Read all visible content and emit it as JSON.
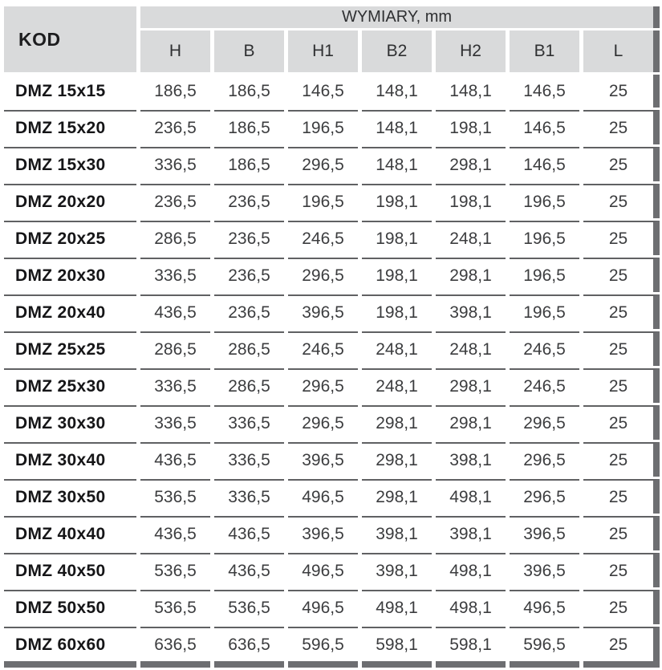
{
  "table": {
    "header": {
      "kod_label": "KOD",
      "group_label": "WYMIARY, mm",
      "columns": [
        "H",
        "B",
        "H1",
        "B2",
        "H2",
        "B1",
        "L"
      ]
    },
    "rows": [
      {
        "kod": "DMZ 15x15",
        "values": [
          "186,5",
          "186,5",
          "146,5",
          "148,1",
          "148,1",
          "146,5",
          "25"
        ]
      },
      {
        "kod": "DMZ 15x20",
        "values": [
          "236,5",
          "186,5",
          "196,5",
          "148,1",
          "198,1",
          "146,5",
          "25"
        ]
      },
      {
        "kod": "DMZ 15x30",
        "values": [
          "336,5",
          "186,5",
          "296,5",
          "148,1",
          "298,1",
          "146,5",
          "25"
        ]
      },
      {
        "kod": "DMZ 20x20",
        "values": [
          "236,5",
          "236,5",
          "196,5",
          "198,1",
          "198,1",
          "196,5",
          "25"
        ]
      },
      {
        "kod": "DMZ 20x25",
        "values": [
          "286,5",
          "236,5",
          "246,5",
          "198,1",
          "248,1",
          "196,5",
          "25"
        ]
      },
      {
        "kod": "DMZ 20x30",
        "values": [
          "336,5",
          "236,5",
          "296,5",
          "198,1",
          "298,1",
          "196,5",
          "25"
        ]
      },
      {
        "kod": "DMZ 20x40",
        "values": [
          "436,5",
          "236,5",
          "396,5",
          "198,1",
          "398,1",
          "196,5",
          "25"
        ]
      },
      {
        "kod": "DMZ 25x25",
        "values": [
          "286,5",
          "286,5",
          "246,5",
          "248,1",
          "248,1",
          "246,5",
          "25"
        ]
      },
      {
        "kod": "DMZ 25x30",
        "values": [
          "336,5",
          "286,5",
          "296,5",
          "248,1",
          "298,1",
          "246,5",
          "25"
        ]
      },
      {
        "kod": "DMZ 30x30",
        "values": [
          "336,5",
          "336,5",
          "296,5",
          "298,1",
          "298,1",
          "296,5",
          "25"
        ]
      },
      {
        "kod": "DMZ 30x40",
        "values": [
          "436,5",
          "336,5",
          "396,5",
          "298,1",
          "398,1",
          "296,5",
          "25"
        ]
      },
      {
        "kod": "DMZ 30x50",
        "values": [
          "536,5",
          "336,5",
          "496,5",
          "298,1",
          "498,1",
          "296,5",
          "25"
        ]
      },
      {
        "kod": "DMZ 40x40",
        "values": [
          "436,5",
          "436,5",
          "396,5",
          "398,1",
          "398,1",
          "396,5",
          "25"
        ]
      },
      {
        "kod": "DMZ 40x50",
        "values": [
          "536,5",
          "436,5",
          "496,5",
          "398,1",
          "498,1",
          "396,5",
          "25"
        ]
      },
      {
        "kod": "DMZ 50x50",
        "values": [
          "536,5",
          "536,5",
          "496,5",
          "498,1",
          "498,1",
          "496,5",
          "25"
        ]
      },
      {
        "kod": "DMZ 60x60",
        "values": [
          "636,5",
          "636,5",
          "596,5",
          "598,1",
          "598,1",
          "596,5",
          "25"
        ]
      }
    ],
    "colors": {
      "header_bg": "#d9dadb",
      "row_separator": "#606163",
      "shadow_bar": "#6d6e71"
    }
  }
}
